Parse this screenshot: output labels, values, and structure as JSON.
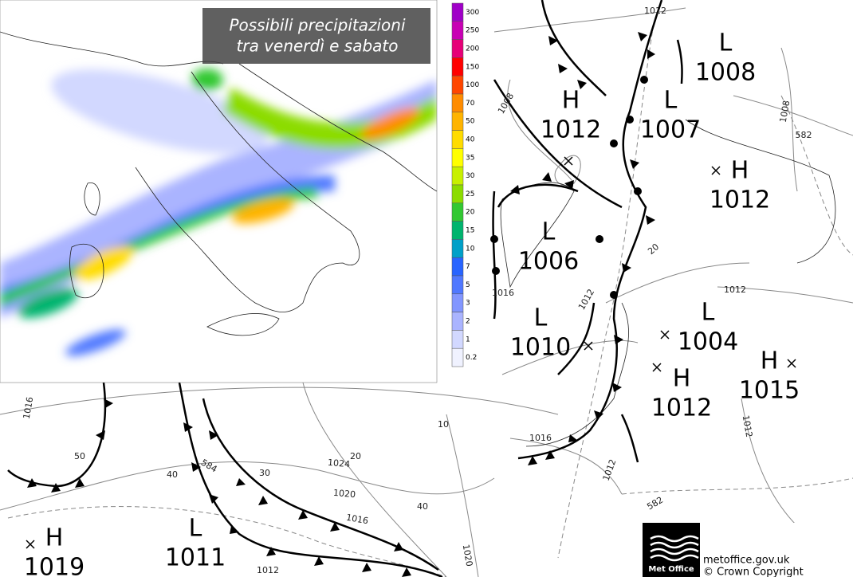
{
  "title": {
    "line1": "Possibili precipitazioni",
    "line2": "tra venerdì e sabato"
  },
  "legend": {
    "levels": [
      {
        "value": 300,
        "color": "#a000c8"
      },
      {
        "value": 250,
        "color": "#c800b4"
      },
      {
        "value": 200,
        "color": "#e60078"
      },
      {
        "value": 150,
        "color": "#ff0000"
      },
      {
        "value": 100,
        "color": "#ff4600"
      },
      {
        "value": 70,
        "color": "#ff8c00"
      },
      {
        "value": 50,
        "color": "#ffb400"
      },
      {
        "value": 40,
        "color": "#ffdc00"
      },
      {
        "value": 35,
        "color": "#ffff00"
      },
      {
        "value": 30,
        "color": "#c8f000"
      },
      {
        "value": 25,
        "color": "#8cdc00"
      },
      {
        "value": 20,
        "color": "#32c832"
      },
      {
        "value": 15,
        "color": "#00b46e"
      },
      {
        "value": 10,
        "color": "#00a0c8"
      },
      {
        "value": 7,
        "color": "#2864ff"
      },
      {
        "value": 5,
        "color": "#5078ff"
      },
      {
        "value": 3,
        "color": "#8296ff"
      },
      {
        "value": 2,
        "color": "#aab4ff"
      },
      {
        "value": 1,
        "color": "#d2d8ff"
      },
      {
        "value": 0.2,
        "color": "#f0f2ff"
      }
    ]
  },
  "centers": [
    {
      "type": "H",
      "value": 1012
    },
    {
      "type": "L",
      "value": 1007
    },
    {
      "type": "L",
      "value": 1008
    },
    {
      "type": "H",
      "value": 1012
    },
    {
      "type": "L",
      "value": 1006
    },
    {
      "type": "L",
      "value": 1010
    },
    {
      "type": "L",
      "value": 1004
    },
    {
      "type": "H",
      "value": 1012
    },
    {
      "type": "H",
      "value": 1015
    },
    {
      "type": "H",
      "value": 1019
    },
    {
      "type": "L",
      "value": 1011
    }
  ],
  "isobar_labels": [
    1012,
    1008,
    1008,
    582,
    1012,
    1016,
    1012,
    1016,
    1012,
    582,
    1012,
    1016,
    1024,
    1020,
    1016,
    1012,
    1020,
    584,
    50,
    40,
    30,
    20,
    10,
    40,
    20
  ],
  "footer": {
    "logo": "Met Office",
    "site": "metoffice.gov.uk",
    "copyright": "© Crown Copyright"
  }
}
